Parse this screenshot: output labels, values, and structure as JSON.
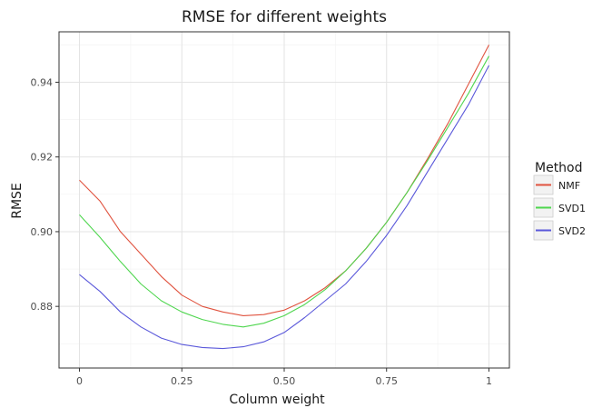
{
  "chart_data": {
    "type": "line",
    "title": "RMSE for different weights",
    "xlabel": "Column weight",
    "ylabel": "RMSE",
    "xlim": [
      -0.05,
      1.05
    ],
    "ylim": [
      0.8635,
      0.9535
    ],
    "x_ticks": [
      0,
      0.25,
      0.5,
      0.75,
      1
    ],
    "x_tick_labels": [
      "0",
      "0.25",
      "0.50",
      "0.75",
      "1"
    ],
    "y_ticks": [
      0.88,
      0.9,
      0.92,
      0.94
    ],
    "y_tick_labels": [
      "0.88",
      "0.90",
      "0.92",
      "0.94"
    ],
    "grid": true,
    "legend": {
      "title": "Method",
      "placement": "right"
    },
    "series": [
      {
        "name": "NMF",
        "color": "#E0533F",
        "x": [
          0,
          0.05,
          0.1,
          0.15,
          0.2,
          0.25,
          0.3,
          0.35,
          0.4,
          0.45,
          0.5,
          0.55,
          0.6,
          0.65,
          0.7,
          0.75,
          0.8,
          0.85,
          0.9,
          0.95,
          1
        ],
        "values": [
          0.9138,
          0.9082,
          0.9,
          0.894,
          0.888,
          0.883,
          0.88,
          0.8785,
          0.8775,
          0.8778,
          0.879,
          0.8815,
          0.885,
          0.8895,
          0.8955,
          0.9025,
          0.9105,
          0.9195,
          0.929,
          0.9395,
          0.95
        ]
      },
      {
        "name": "SVD1",
        "color": "#4FD64F",
        "x": [
          0,
          0.05,
          0.1,
          0.15,
          0.2,
          0.25,
          0.3,
          0.35,
          0.4,
          0.45,
          0.5,
          0.55,
          0.6,
          0.65,
          0.7,
          0.75,
          0.8,
          0.85,
          0.9,
          0.95,
          1
        ],
        "values": [
          0.9045,
          0.8985,
          0.892,
          0.886,
          0.8815,
          0.8785,
          0.8765,
          0.8752,
          0.8745,
          0.8755,
          0.8775,
          0.8805,
          0.8845,
          0.8895,
          0.8955,
          0.9025,
          0.9105,
          0.919,
          0.928,
          0.937,
          0.947
        ]
      },
      {
        "name": "SVD2",
        "color": "#5A58DA",
        "x": [
          0,
          0.05,
          0.1,
          0.15,
          0.2,
          0.25,
          0.3,
          0.35,
          0.4,
          0.45,
          0.5,
          0.55,
          0.6,
          0.65,
          0.7,
          0.75,
          0.8,
          0.85,
          0.9,
          0.95,
          1
        ],
        "values": [
          0.8885,
          0.884,
          0.8785,
          0.8745,
          0.8715,
          0.8698,
          0.869,
          0.8687,
          0.8692,
          0.8705,
          0.873,
          0.877,
          0.8815,
          0.886,
          0.892,
          0.899,
          0.907,
          0.916,
          0.925,
          0.934,
          0.9445
        ]
      }
    ]
  }
}
